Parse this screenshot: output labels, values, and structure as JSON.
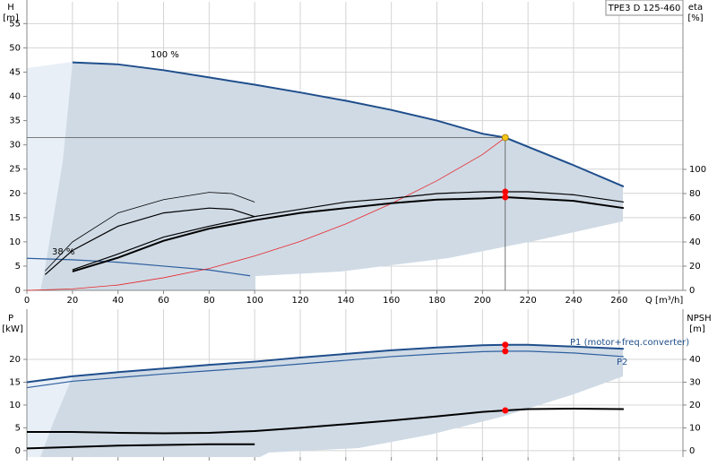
{
  "chart_data": [
    {
      "type": "line",
      "box_label": "TPE3 D 125-460",
      "ylabel": "H",
      "yunit": "[m]",
      "y2label": "eta",
      "y2unit": "[%]",
      "xlabel": "Q [m³/h]",
      "xlim": [
        0,
        288
      ],
      "ylim": [
        0,
        59.5
      ],
      "y2lim": [
        0,
        238.5
      ],
      "xticks": [
        0,
        20,
        40,
        60,
        80,
        100,
        120,
        140,
        160,
        180,
        200,
        220,
        240,
        260
      ],
      "yticks": [
        0,
        5,
        10,
        15,
        20,
        25,
        30,
        35,
        40,
        45,
        50,
        55
      ],
      "y2ticks": [
        0,
        20,
        40,
        60,
        80,
        100
      ],
      "xtick_labels": true,
      "grid": true,
      "series": [
        {
          "name": "100 %",
          "color": "#1f4e8c",
          "width": 2,
          "x": [
            20,
            40,
            60,
            80,
            100,
            120,
            140,
            160,
            180,
            200,
            210,
            220,
            240,
            262
          ],
          "values": [
            47,
            46.6,
            45.4,
            43.9,
            42.4,
            40.8,
            39.1,
            37.2,
            35,
            32.3,
            31.5,
            29.6,
            25.8,
            21.4
          ]
        },
        {
          "name": "38 %",
          "color": "#2e5f9e",
          "width": 1.2,
          "x": [
            0,
            20,
            40,
            60,
            80,
            98
          ],
          "values": [
            6.6,
            6.3,
            5.8,
            5,
            4.2,
            3
          ]
        },
        {
          "color": "#e8262a",
          "width": 0.8,
          "x": [
            0,
            20,
            40,
            60,
            80,
            100,
            120,
            140,
            160,
            180,
            200,
            210
          ],
          "values": [
            0,
            0.3,
            1.1,
            2.6,
            4.5,
            7.1,
            10.1,
            13.7,
            17.9,
            22.6,
            28,
            31.5
          ]
        },
        {
          "color": "#000000",
          "width": 1.2,
          "axis": "y2",
          "x": [
            20,
            40,
            60,
            80,
            100,
            120,
            140,
            160,
            180,
            200,
            210,
            220,
            240,
            262
          ],
          "values": [
            17,
            30,
            44,
            53,
            61,
            67,
            73,
            76,
            80,
            81.5,
            81.5,
            81.5,
            79,
            73
          ]
        },
        {
          "color": "#000000",
          "width": 2,
          "axis": "y2",
          "x": [
            20,
            40,
            60,
            80,
            100,
            120,
            140,
            160,
            180,
            200,
            210,
            220,
            240,
            262
          ],
          "values": [
            15.6,
            27,
            41,
            51,
            58,
            64,
            68,
            72,
            75,
            76,
            77,
            76,
            74,
            68
          ]
        },
        {
          "color": "#000000",
          "width": 0.8,
          "axis": "y2",
          "x": [
            8,
            20,
            40,
            60,
            80,
            90,
            100
          ],
          "values": [
            16,
            40,
            64,
            75,
            81,
            80,
            73
          ]
        },
        {
          "color": "#000000",
          "width": 1.2,
          "axis": "y2",
          "x": [
            8,
            20,
            40,
            60,
            80,
            90,
            100
          ],
          "values": [
            13,
            33,
            53,
            64,
            68,
            67,
            61
          ]
        }
      ],
      "markers": [
        {
          "x": 210,
          "y": 31.5,
          "color": "#f5c518",
          "guides": true
        },
        {
          "x": 210,
          "y": 81.5,
          "axis": "y2",
          "color": "#ff0000"
        },
        {
          "x": 210,
          "y": 77,
          "axis": "y2",
          "color": "#ff0000"
        }
      ]
    },
    {
      "type": "line",
      "ylabel": "P",
      "yunit": "[kW]",
      "y2label": "NPSH",
      "y2unit": "[m]",
      "xlim": [
        0,
        288
      ],
      "ylim": [
        -1.4,
        31
      ],
      "y2lim": [
        -2.8,
        62
      ],
      "xticks": [
        0,
        20,
        40,
        60,
        80,
        100,
        120,
        140,
        160,
        180,
        200,
        220,
        240,
        260
      ],
      "yticks": [
        0,
        5,
        10,
        15,
        20
      ],
      "y2ticks": [
        0,
        10,
        20,
        30,
        40
      ],
      "xtick_labels": false,
      "grid": true,
      "series": [
        {
          "name": "P1 (motor+freq.converter)",
          "color": "#1f4e8c",
          "width": 2,
          "x": [
            0,
            20,
            40,
            60,
            80,
            100,
            120,
            140,
            160,
            180,
            200,
            210,
            220,
            240,
            262
          ],
          "values": [
            15,
            16.3,
            17.2,
            18,
            18.8,
            19.5,
            20.4,
            21.2,
            22,
            22.6,
            23.1,
            23.2,
            23.2,
            22.8,
            22.3
          ]
        },
        {
          "name": "P2",
          "color": "#2e5f9e",
          "width": 1.2,
          "x": [
            0,
            20,
            40,
            60,
            80,
            100,
            120,
            140,
            160,
            180,
            200,
            210,
            220,
            240,
            262
          ],
          "values": [
            13.8,
            15.2,
            16,
            16.8,
            17.5,
            18.2,
            19,
            19.8,
            20.6,
            21.2,
            21.7,
            21.8,
            21.8,
            21.4,
            20.6
          ]
        },
        {
          "color": "#000000",
          "width": 2,
          "axis": "y2",
          "x": [
            0,
            20,
            40,
            60,
            80,
            100,
            120,
            140,
            160,
            180,
            200,
            210,
            220,
            240,
            262
          ],
          "values": [
            8.2,
            8.2,
            7.8,
            7.6,
            7.8,
            8.6,
            10,
            11.6,
            13.2,
            15,
            17,
            17.6,
            18.2,
            18.4,
            18.2
          ]
        },
        {
          "color": "#000000",
          "width": 2,
          "x": [
            0,
            40,
            80,
            100
          ],
          "values": [
            0.5,
            1.1,
            1.4,
            1.4
          ]
        }
      ],
      "markers": [
        {
          "x": 210,
          "y": 23.2,
          "color": "#ff0000"
        },
        {
          "x": 210,
          "y": 21.8,
          "color": "#ff0000"
        },
        {
          "x": 210,
          "y": 17.6,
          "axis": "y2",
          "color": "#ff0000"
        }
      ]
    }
  ]
}
